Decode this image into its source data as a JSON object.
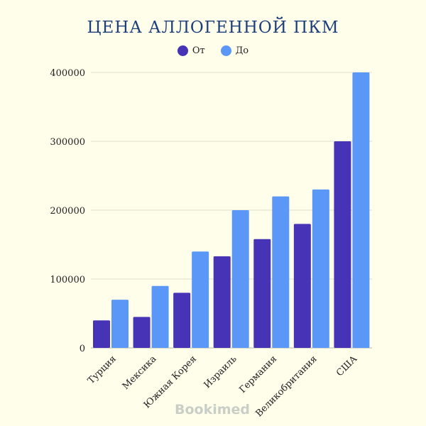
{
  "chart_data": {
    "type": "bar",
    "title": "ЦЕНА АЛЛОГЕННОЙ ПКМ",
    "categories": [
      "Турция",
      "Мексика",
      "Южная Корея",
      "Израиль",
      "Германия",
      "Великобритания",
      "США"
    ],
    "series": [
      {
        "name": "От",
        "color": "#4733b5",
        "values": [
          40000,
          45000,
          80000,
          133000,
          158000,
          180000,
          300000
        ]
      },
      {
        "name": "До",
        "color": "#5b97f7",
        "values": [
          70000,
          90000,
          140000,
          200000,
          220000,
          230000,
          400000
        ]
      }
    ],
    "yticks": [
      "0",
      "100000",
      "200000",
      "300000",
      "400000"
    ],
    "ylim": [
      0,
      400000
    ],
    "grid": true,
    "legend": "top"
  },
  "watermark": "Bookimed"
}
